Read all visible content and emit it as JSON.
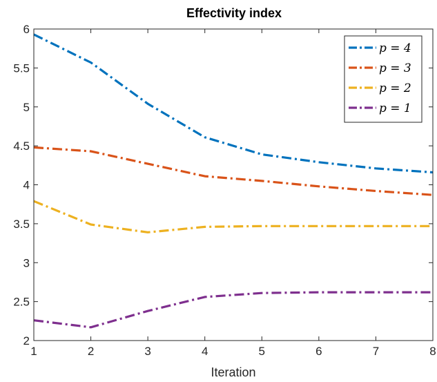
{
  "chart_data": {
    "type": "line",
    "title": "Effectivity index",
    "xlabel": "Iteration",
    "ylabel": "",
    "x": [
      1,
      2,
      3,
      4,
      5,
      6,
      7,
      8
    ],
    "xlim": [
      1,
      8
    ],
    "ylim": [
      2,
      6
    ],
    "xticks": [
      "1",
      "2",
      "3",
      "4",
      "5",
      "6",
      "7",
      "8"
    ],
    "yticks": [
      "2",
      "2.5",
      "3",
      "3.5",
      "4",
      "4.5",
      "5",
      "5.5",
      "6"
    ],
    "grid": false,
    "legend_position": "top-right",
    "line_style": "dash-dot",
    "series": [
      {
        "name": "p = 4",
        "color": "#0072BD",
        "values": [
          5.93,
          5.57,
          5.04,
          4.61,
          4.39,
          4.29,
          4.21,
          4.16
        ]
      },
      {
        "name": "p = 3",
        "color": "#D95319",
        "values": [
          4.48,
          4.43,
          4.27,
          4.11,
          4.05,
          3.98,
          3.92,
          3.87
        ]
      },
      {
        "name": "p = 2",
        "color": "#EDB120",
        "values": [
          3.79,
          3.49,
          3.39,
          3.46,
          3.47,
          3.47,
          3.47,
          3.47
        ]
      },
      {
        "name": "p = 1",
        "color": "#7E2F8E",
        "values": [
          2.26,
          2.17,
          2.38,
          2.56,
          2.61,
          2.62,
          2.62,
          2.62
        ]
      }
    ]
  }
}
